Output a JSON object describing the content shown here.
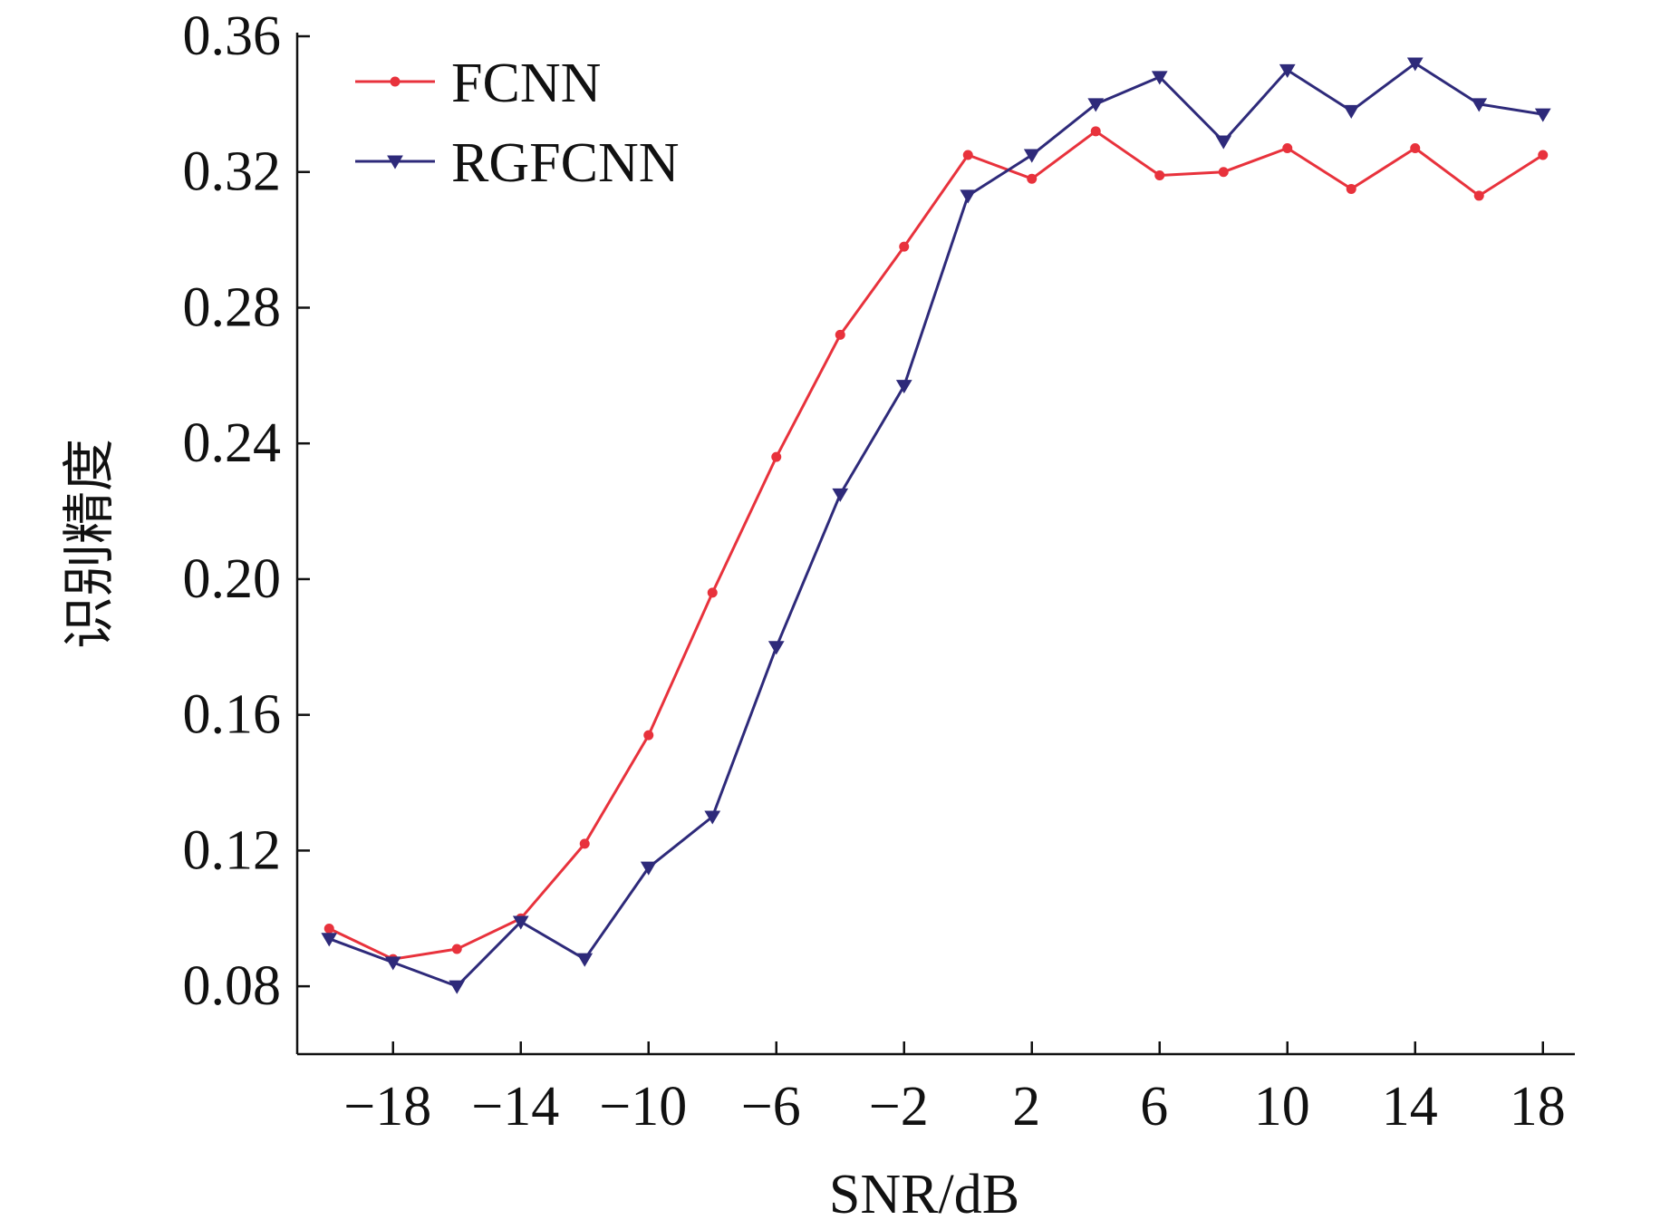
{
  "chart_data": {
    "type": "line",
    "xlabel": "SNR/dB",
    "ylabel": "识别精度",
    "xlim": [
      -21,
      19
    ],
    "ylim": [
      0.06,
      0.36
    ],
    "x_ticks": [
      -18,
      -14,
      -10,
      -6,
      -2,
      2,
      6,
      10,
      14,
      18
    ],
    "x_tick_labels": [
      "−18",
      "−14",
      "−10",
      "−6",
      "−2",
      "2",
      "6",
      "10",
      "14",
      "18"
    ],
    "y_ticks": [
      0.08,
      0.12,
      0.16,
      0.2,
      0.24,
      0.28,
      0.32,
      0.36
    ],
    "y_tick_labels": [
      "0.08",
      "0.12",
      "0.16",
      "0.20",
      "0.24",
      "0.28",
      "0.32",
      "0.36"
    ],
    "grid": false,
    "legend_position": "top-left",
    "x": [
      -20,
      -18,
      -16,
      -14,
      -12,
      -10,
      -8,
      -6,
      -4,
      -2,
      0,
      2,
      4,
      6,
      8,
      10,
      12,
      14,
      16,
      18
    ],
    "series": [
      {
        "name": "FCNN",
        "color": "#e8323c",
        "marker": "dot",
        "values": [
          0.097,
          0.088,
          0.091,
          0.1,
          0.122,
          0.154,
          0.196,
          0.236,
          0.272,
          0.298,
          0.325,
          0.318,
          0.332,
          0.319,
          0.32,
          0.327,
          0.315,
          0.327,
          0.313,
          0.325
        ]
      },
      {
        "name": "RGFCNN",
        "color": "#2e2a7a",
        "marker": "triangle-down",
        "values": [
          0.094,
          0.087,
          0.08,
          0.099,
          0.088,
          0.115,
          0.13,
          0.18,
          0.225,
          0.257,
          0.313,
          0.325,
          0.34,
          0.348,
          0.329,
          0.35,
          0.338,
          0.352,
          0.34,
          0.337
        ]
      }
    ]
  }
}
